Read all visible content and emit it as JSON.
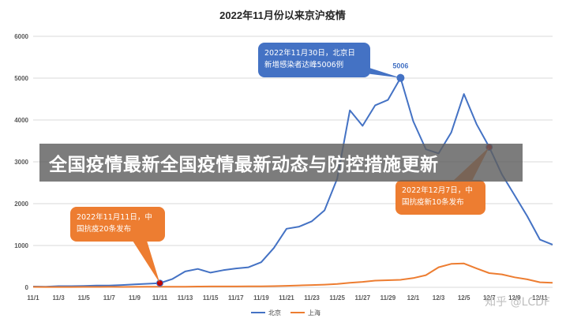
{
  "chart_data": {
    "type": "line",
    "title": "2022年11月份以来京沪疫情",
    "x": [
      "11/1",
      "11/2",
      "11/3",
      "11/4",
      "11/5",
      "11/6",
      "11/7",
      "11/8",
      "11/9",
      "11/10",
      "11/11",
      "11/12",
      "11/13",
      "11/14",
      "11/15",
      "11/16",
      "11/17",
      "11/18",
      "11/19",
      "11/20",
      "11/21",
      "11/22",
      "11/23",
      "11/24",
      "11/25",
      "11/26",
      "11/27",
      "11/28",
      "11/29",
      "11/30",
      "12/1",
      "12/2",
      "12/3",
      "12/4",
      "12/5",
      "12/6",
      "12/7",
      "12/8",
      "12/9",
      "12/10",
      "12/11",
      "12/12"
    ],
    "xticks": [
      "11/1",
      "11/3",
      "11/5",
      "11/7",
      "11/9",
      "11/11",
      "11/13",
      "11/15",
      "11/17",
      "11/19",
      "11/21",
      "11/23",
      "11/25",
      "11/27",
      "11/29",
      "12/1",
      "12/3",
      "12/5",
      "12/7",
      "12/9",
      "12/11"
    ],
    "ylim": [
      0,
      6000
    ],
    "yticks": [
      0,
      1000,
      2000,
      3000,
      4000,
      5000,
      6000
    ],
    "grid": true,
    "legend": "bottom",
    "series": [
      {
        "name": "北京",
        "color": "#4472c4",
        "values": [
          18,
          15,
          28,
          28,
          33,
          42,
          44,
          55,
          70,
          85,
          100,
          200,
          380,
          440,
          350,
          410,
          450,
          480,
          600,
          940,
          1400,
          1450,
          1580,
          1840,
          2600,
          4230,
          3860,
          4350,
          4480,
          5006,
          3970,
          3300,
          3200,
          3700,
          4620,
          3900,
          3350,
          2700,
          2200,
          1700,
          1140,
          1020
        ]
      },
      {
        "name": "上海",
        "color": "#ed7d31",
        "values": [
          10,
          8,
          8,
          8,
          10,
          10,
          12,
          10,
          12,
          14,
          14,
          16,
          16,
          18,
          20,
          20,
          20,
          22,
          24,
          28,
          35,
          45,
          55,
          65,
          80,
          110,
          130,
          160,
          170,
          180,
          220,
          290,
          480,
          560,
          570,
          450,
          340,
          310,
          240,
          190,
          120,
          110
        ]
      }
    ],
    "annotations": [
      {
        "text_line1": "2022年11月30日，北京日",
        "text_line2": "新增感染者达峰5006例",
        "point_label": "5006"
      },
      {
        "text_line1": "2022年11月11日，中",
        "text_line2": "国抗疫20条发布"
      },
      {
        "text_line1": "2022年12月7日，中",
        "text_line2": "国抗疫新10条发布"
      }
    ]
  },
  "banner": {
    "text": "全国疫情最新全国疫情最新动态与防控措施更新"
  },
  "watermark": {
    "text": "知乎 @LCDF"
  },
  "colors": {
    "beijing": "#4472c4",
    "shanghai": "#ed7d31",
    "marker_red": "#c00000"
  }
}
